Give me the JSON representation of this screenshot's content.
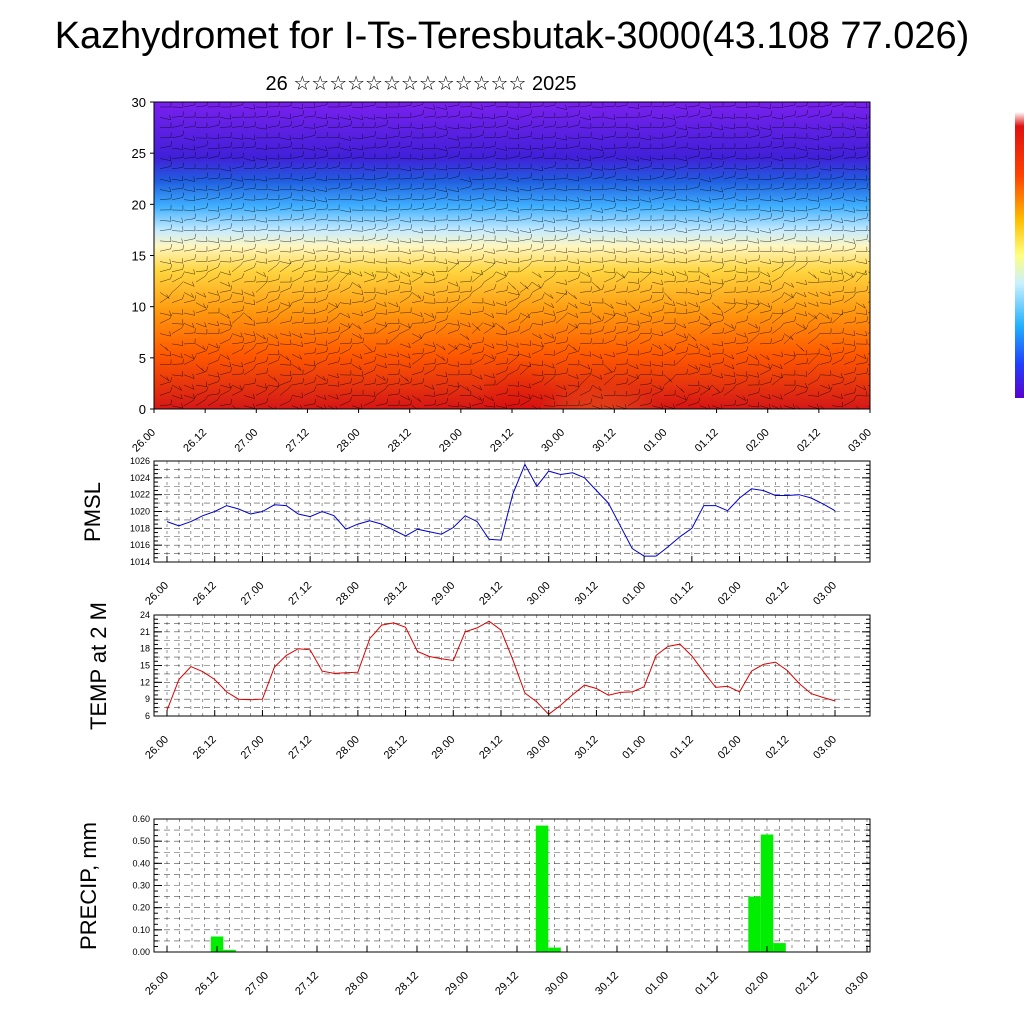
{
  "header": {
    "title": "Kazhydromet for I-Ts-Teresbutak-3000(43.108 77.026)",
    "subtitle": "26 ☆☆☆☆☆☆☆☆☆☆☆☆☆ 2025"
  },
  "colors": {
    "pmsl_line": "#0000cc",
    "temp_line": "#dd0000",
    "precip_bar": "#00ee00",
    "grid": "#000000"
  },
  "chart_data": [
    {
      "type": "heatmap",
      "name": "vertical-cross-section",
      "ylim": [
        0,
        30
      ],
      "y_ticks": [
        0,
        5,
        10,
        15,
        20,
        25,
        30
      ],
      "x_ticks": [
        "26.00",
        "26.12",
        "27.00",
        "27.12",
        "28.00",
        "28.12",
        "29.00",
        "29.12",
        "30.00",
        "30.12",
        "01.00",
        "01.12",
        "02.00",
        "02.12",
        "03.00"
      ],
      "xlabel": "",
      "ylabel": "",
      "overlay": "wind barbs",
      "colorbar": {
        "orientation": "vertical",
        "position": "right",
        "colors": [
          "#ffffff",
          "#e01010",
          "#ff8c00",
          "#ffe050",
          "#ffffe0",
          "#60c8ff",
          "#1060e0",
          "#6010e0"
        ]
      }
    },
    {
      "type": "line",
      "ylabel": "PMSL",
      "xlabel": "",
      "ylim": [
        1014,
        1026
      ],
      "y_ticks": [
        1014,
        1016,
        1018,
        1020,
        1022,
        1024,
        1026
      ],
      "x_ticks": [
        "26.00",
        "26.12",
        "27.00",
        "27.12",
        "28.00",
        "28.12",
        "29.00",
        "29.12",
        "30.00",
        "30.12",
        "01.00",
        "01.12",
        "02.00",
        "02.12",
        "03.00"
      ],
      "series": [
        {
          "color": "#0000cc",
          "values": [
            1018.8,
            1018.3,
            1018.8,
            1019.5,
            1020.0,
            1020.7,
            1020.3,
            1019.7,
            1020.0,
            1020.8,
            1020.7,
            1019.7,
            1019.4,
            1020.0,
            1019.5,
            1017.9,
            1018.5,
            1018.9,
            1018.5,
            1017.8,
            1017.1,
            1017.9,
            1017.6,
            1017.3,
            1018.1,
            1019.5,
            1018.8,
            1016.7,
            1016.6,
            1022.1,
            1025.6,
            1023.0,
            1024.8,
            1024.4,
            1024.6,
            1024.0,
            1022.5,
            1021.0,
            1018.3,
            1015.6,
            1014.7,
            1014.7,
            1015.8,
            1017.0,
            1018.0,
            1020.7,
            1020.7,
            1020.1,
            1021.6,
            1022.7,
            1022.5,
            1021.9,
            1021.9,
            1022.0,
            1021.6,
            1020.9,
            1020.1
          ]
        }
      ],
      "grid": true
    },
    {
      "type": "line",
      "ylabel": "TEMP at 2 M",
      "xlabel": "",
      "ylim": [
        6,
        24
      ],
      "y_ticks": [
        6,
        9,
        12,
        15,
        18,
        21,
        24
      ],
      "x_ticks": [
        "26.00",
        "26.12",
        "27.00",
        "27.12",
        "28.00",
        "28.12",
        "29.00",
        "29.12",
        "30.00",
        "30.12",
        "01.00",
        "01.12",
        "02.00",
        "02.12",
        "03.00"
      ],
      "series": [
        {
          "color": "#dd0000",
          "values": [
            7.0,
            12.5,
            14.8,
            13.9,
            12.5,
            10.3,
            9.0,
            8.9,
            9.0,
            14.7,
            16.8,
            18.0,
            17.8,
            14.0,
            13.6,
            13.7,
            13.8,
            19.8,
            22.2,
            22.6,
            21.8,
            17.5,
            16.6,
            16.2,
            15.9,
            21.0,
            21.7,
            22.9,
            21.3,
            16.0,
            10.1,
            8.5,
            6.3,
            7.9,
            9.8,
            11.5,
            10.9,
            9.7,
            10.2,
            10.3,
            11.2,
            16.8,
            18.4,
            18.8,
            16.7,
            13.8,
            11.1,
            11.3,
            10.3,
            14.0,
            15.2,
            15.6,
            14.1,
            11.8,
            10.0,
            9.3,
            8.7
          ]
        }
      ],
      "grid": true
    },
    {
      "type": "bar",
      "ylabel": "PRECIP, mm",
      "xlabel": "",
      "ylim": [
        0,
        0.6
      ],
      "y_ticks": [
        "0.00",
        "0.10",
        "0.20",
        "0.30",
        "0.40",
        "0.50",
        "0.60"
      ],
      "x_ticks": [
        "26.00",
        "26.12",
        "27.00",
        "27.12",
        "28.00",
        "28.12",
        "29.00",
        "29.12",
        "30.00",
        "30.12",
        "01.00",
        "01.12",
        "02.00",
        "02.12",
        "03.00"
      ],
      "bars": [
        {
          "x": 4,
          "value": 0.07
        },
        {
          "x": 5,
          "value": 0.01
        },
        {
          "x": 30,
          "value": 0.57
        },
        {
          "x": 31,
          "value": 0.02
        },
        {
          "x": 47,
          "value": 0.25
        },
        {
          "x": 48,
          "value": 0.53
        },
        {
          "x": 49,
          "value": 0.04
        }
      ],
      "color": "#00ee00",
      "grid": true
    }
  ]
}
